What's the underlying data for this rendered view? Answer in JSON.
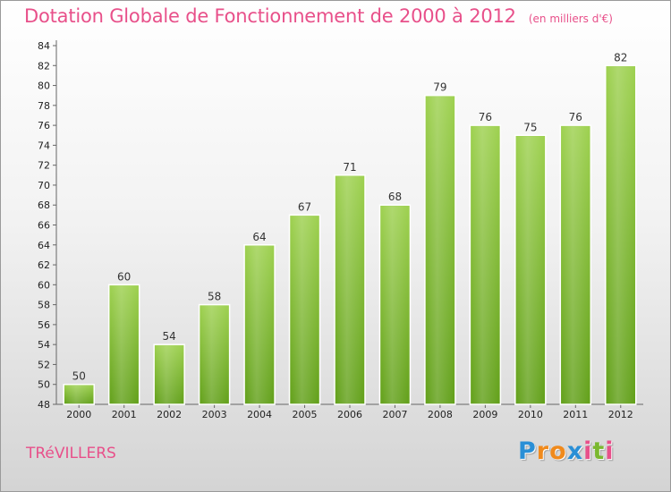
{
  "chart_data": {
    "type": "bar",
    "title": "Dotation Globale de Fonctionnement de 2000 à 2012",
    "subtitle": "(en milliers d'€)",
    "categories": [
      "2000",
      "2001",
      "2002",
      "2003",
      "2004",
      "2005",
      "2006",
      "2007",
      "2008",
      "2009",
      "2010",
      "2011",
      "2012"
    ],
    "values": [
      50,
      60,
      54,
      58,
      64,
      67,
      71,
      68,
      79,
      76,
      75,
      76,
      82
    ],
    "data_labels": [
      "50",
      "60",
      "54",
      "58",
      "64",
      "67",
      "71",
      "68",
      "79",
      "76",
      "75",
      "76",
      "82"
    ],
    "ylim": [
      48,
      84
    ],
    "yticks": [
      "48",
      "50",
      "52",
      "54",
      "56",
      "58",
      "60",
      "62",
      "64",
      "66",
      "68",
      "70",
      "72",
      "74",
      "76",
      "78",
      "80",
      "82",
      "84"
    ],
    "grid": false,
    "bar_color": "#8cc63f"
  },
  "footer": {
    "commune": "TRéVILLERS",
    "logo": {
      "letters": [
        "P",
        "r",
        "o",
        "x",
        "i",
        "t",
        "i"
      ],
      "colors": [
        "#2a8fd6",
        "#f08a1c",
        "#f08a1c",
        "#2a8fd6",
        "#e8508a",
        "#7ab82e",
        "#e8508a"
      ]
    }
  }
}
